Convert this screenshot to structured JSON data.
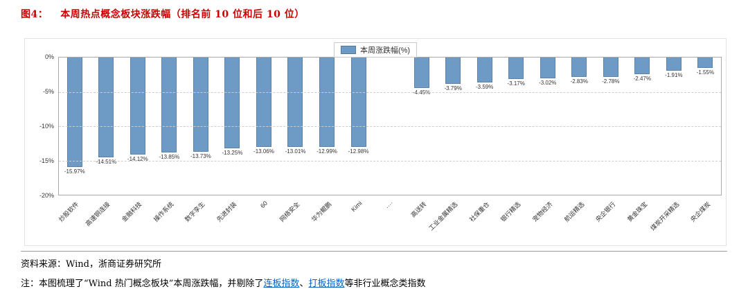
{
  "figure": {
    "label": "图4：",
    "title": "本周热点概念板块涨跌幅（排名前 10 位和后 10 位）"
  },
  "chart_data": {
    "type": "bar",
    "title": "本周热点概念板块涨跌幅（排名前 10 位和后 10 位）",
    "legend": "本周涨跌幅(%)",
    "legend_position": "top-center",
    "grid": "horizontal-dashed",
    "ylim": [
      -20,
      0
    ],
    "ytick_labels": [
      "0%",
      "-5%",
      "-10%",
      "-15%",
      "-20%"
    ],
    "bar_color": "#6D9BC5",
    "categories": [
      "炒股软件",
      "高速铜连接",
      "金融科技",
      "操作系统",
      "数字孪生",
      "先进封装",
      "60",
      "网络安全",
      "华为鲲鹏",
      "Kimi",
      "····",
      "高送转",
      "工业金属精选",
      "社保重仓",
      "银行精选",
      "宠物经济",
      "航运精选",
      "央企银行",
      "黄金珠宝",
      "煤炭开采精选",
      "央企煤炭"
    ],
    "values": [
      -15.97,
      -14.51,
      -14.12,
      -13.85,
      -13.73,
      -13.25,
      -13.06,
      -13.01,
      -12.99,
      -12.98,
      null,
      -4.45,
      -3.79,
      -3.59,
      -3.17,
      -3.02,
      -2.83,
      -2.78,
      -2.47,
      -1.91,
      -1.55
    ],
    "value_labels": [
      "-15.97%",
      "-14.51%",
      "-14.12%",
      "-13.85%",
      "-13.73%",
      "-13.25%",
      "-13.06%",
      "-13.01%",
      "-12.99%",
      "-12.98%",
      "",
      "-4.45%",
      "-3.79%",
      "-3.59%",
      "-3.17%",
      "-3.02%",
      "-2.83%",
      "-2.78%",
      "-2.47%",
      "-1.91%",
      "-1.55%"
    ]
  },
  "footer": {
    "source": "资料来源：Wind，浙商证券研究所",
    "note_prefix": "注：本图梳理了“Wind 热门概念板块”本周涨跌幅，并剔除了",
    "note_link1": "连板指数",
    "note_sep": "、",
    "note_link2": "打板指数",
    "note_suffix": "等非行业概念类指数",
    "link_color": "#0563C1"
  }
}
